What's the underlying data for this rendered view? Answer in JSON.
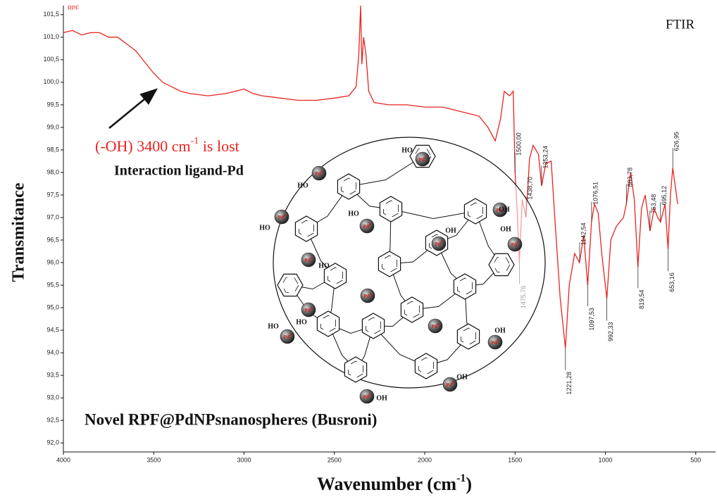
{
  "chart_data": {
    "type": "line",
    "series_tag": "RPF",
    "corner_label": "FTIR",
    "y_label": "Transmitance",
    "x_label": {
      "text": "Wavenumber (cm",
      "sup": "-1",
      "end": ")"
    },
    "annotation": {
      "text": "(-OH) 3400 cm",
      "sup": "-1",
      "end": " is lost"
    },
    "annotation2": "Interaction ligand-Pd",
    "caption": "Novel RPF@PdNPsnanospheres (Busroni)",
    "xlim": [
      4000,
      390
    ],
    "ylim": [
      91.8,
      101.7
    ],
    "xticks": [
      4000,
      3500,
      3000,
      2500,
      2000,
      1500,
      1000,
      500
    ],
    "yticks": [
      {
        "value": 92.0,
        "label": "92,0"
      },
      {
        "value": 92.5,
        "label": "92,5"
      },
      {
        "value": 93.0,
        "label": "93,0"
      },
      {
        "value": 93.5,
        "label": "93,5"
      },
      {
        "value": 94.0,
        "label": "94,0"
      },
      {
        "value": 94.5,
        "label": "94,5"
      },
      {
        "value": 95.0,
        "label": "95,0"
      },
      {
        "value": 95.5,
        "label": "95,5"
      },
      {
        "value": 96.0,
        "label": "96,0"
      },
      {
        "value": 96.5,
        "label": "96,5"
      },
      {
        "value": 97.0,
        "label": "97,0"
      },
      {
        "value": 97.5,
        "label": "97,5"
      },
      {
        "value": 98.0,
        "label": "98,0"
      },
      {
        "value": 98.5,
        "label": "98,5"
      },
      {
        "value": 99.0,
        "label": "99,0"
      },
      {
        "value": 99.5,
        "label": "99,5"
      },
      {
        "value": 100.0,
        "label": "100,0"
      },
      {
        "value": 100.5,
        "label": "100,5"
      },
      {
        "value": 101.0,
        "label": "101,0"
      },
      {
        "value": 101.5,
        "label": "101,5"
      }
    ],
    "grid": false,
    "series": [
      {
        "color": "#e8241f",
        "x": [
          4000,
          3950,
          3900,
          3850,
          3800,
          3750,
          3700,
          3650,
          3600,
          3550,
          3500,
          3450,
          3400,
          3350,
          3300,
          3200,
          3100,
          3000,
          2950,
          2900,
          2800,
          2700,
          2600,
          2500,
          2420,
          2380,
          2365,
          2355,
          2348,
          2338,
          2325,
          2310,
          2280,
          2200,
          2100,
          2000,
          1900,
          1800,
          1700,
          1650,
          1610,
          1580,
          1560,
          1530,
          1510,
          1500,
          1490,
          1476,
          1460,
          1439,
          1420,
          1400,
          1370,
          1353,
          1330,
          1300,
          1280,
          1250,
          1221,
          1200,
          1170,
          1143,
          1120,
          1098,
          1077,
          1060,
          1040,
          1020,
          992,
          970,
          940,
          900,
          884,
          860,
          840,
          820,
          800,
          780,
          753,
          730,
          710,
          695,
          670,
          653,
          640,
          627,
          610,
          600
        ],
        "values": [
          101.1,
          101.15,
          101.05,
          101.1,
          101.1,
          101.0,
          101.0,
          100.85,
          100.7,
          100.45,
          100.2,
          100.0,
          99.9,
          99.8,
          99.75,
          99.7,
          99.75,
          99.85,
          99.75,
          99.7,
          99.65,
          99.6,
          99.6,
          99.65,
          99.7,
          99.9,
          100.6,
          101.7,
          100.4,
          101.0,
          100.6,
          99.8,
          99.55,
          99.5,
          99.5,
          99.45,
          99.45,
          99.35,
          99.25,
          99.0,
          98.7,
          99.2,
          99.8,
          99.7,
          99.8,
          98.0,
          97.3,
          96.0,
          97.4,
          97.0,
          98.3,
          98.6,
          98.4,
          97.7,
          98.2,
          98.25,
          97.0,
          95.2,
          94.1,
          95.5,
          96.2,
          96.0,
          96.6,
          95.5,
          96.9,
          97.3,
          97.1,
          96.2,
          95.2,
          96.5,
          96.8,
          97.0,
          97.3,
          98.0,
          97.4,
          95.9,
          97.2,
          97.5,
          96.7,
          97.2,
          97.0,
          96.9,
          97.3,
          96.3,
          97.5,
          98.1,
          97.6,
          97.3
        ]
      }
    ],
    "peaks": [
      {
        "value": 1500.0,
        "label": "1500,00"
      },
      {
        "value": 1475.76,
        "label": "1475,76"
      },
      {
        "value": 1438.7,
        "label": "1438,70"
      },
      {
        "value": 1353.24,
        "label": "1353,24"
      },
      {
        "value": 1221.28,
        "label": "1221,28"
      },
      {
        "value": 1142.54,
        "label": "1142,54"
      },
      {
        "value": 1097.53,
        "label": "1097,53"
      },
      {
        "value": 1076.51,
        "label": "1076,51"
      },
      {
        "value": 992.33,
        "label": "992,33"
      },
      {
        "value": 883.78,
        "label": "883,78"
      },
      {
        "value": 819.54,
        "label": "819,54"
      },
      {
        "value": 753.48,
        "label": "753,48"
      },
      {
        "value": 695.12,
        "label": "695,12"
      },
      {
        "value": 653.16,
        "label": "653,16"
      },
      {
        "value": 626.95,
        "label": "626,95"
      }
    ],
    "diagram": {
      "hydroxyl_left": "HO",
      "hydroxyl_right": "OH",
      "metal": {
        "base": "Pd",
        "sup": "0"
      }
    }
  }
}
